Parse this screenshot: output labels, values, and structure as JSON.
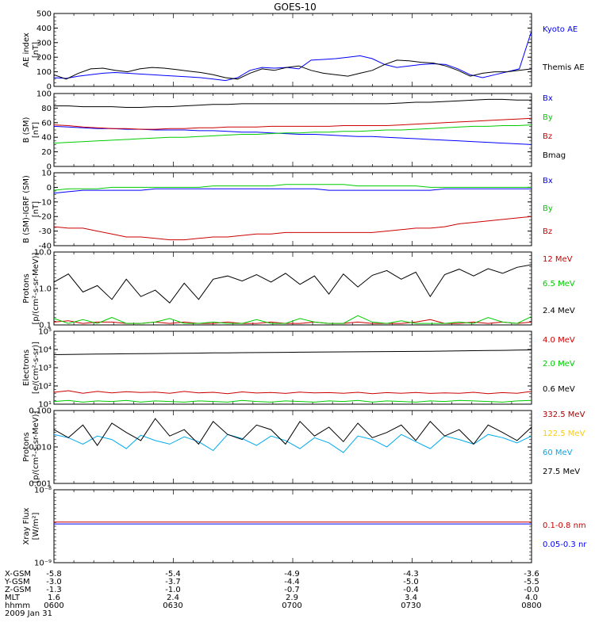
{
  "title": "GOES-10",
  "colors": {
    "blue": "#0000ff",
    "black": "#000000",
    "green": "#00cc00",
    "red": "#cc0000",
    "yellow": "#ffcc00",
    "cyan": "#00aaee",
    "darkred": "#aa0000"
  },
  "chart_data": [
    {
      "type": "line",
      "ylabel": [
        "AE index",
        "[nT]"
      ],
      "ylim": [
        0,
        500
      ],
      "yticks": [
        "0",
        "100",
        "200",
        "300",
        "400",
        "500"
      ],
      "series": [
        {
          "name": "Kyoto AE",
          "color": "#0000ff",
          "values": [
            60,
            55,
            70,
            80,
            90,
            95,
            90,
            85,
            80,
            75,
            70,
            65,
            60,
            50,
            40,
            60,
            110,
            130,
            125,
            130,
            120,
            180,
            185,
            190,
            200,
            210,
            190,
            150,
            130,
            140,
            150,
            155,
            150,
            120,
            80,
            60,
            80,
            100,
            120,
            380
          ]
        },
        {
          "name": "Themis AE",
          "color": "#000000",
          "values": [
            80,
            50,
            90,
            120,
            125,
            110,
            100,
            120,
            130,
            125,
            115,
            105,
            95,
            80,
            60,
            50,
            90,
            120,
            110,
            130,
            140,
            110,
            90,
            80,
            70,
            90,
            110,
            150,
            180,
            175,
            165,
            160,
            140,
            110,
            70,
            90,
            100,
            100,
            110,
            120
          ]
        }
      ]
    },
    {
      "type": "line",
      "ylabel": [
        "B (SM)",
        "[nT]"
      ],
      "ylim": [
        0,
        100
      ],
      "yticks": [
        "0",
        "20",
        "40",
        "60",
        "80",
        "100"
      ],
      "series": [
        {
          "name": "Bx",
          "color": "#0000ff",
          "values": [
            55,
            54,
            53,
            52,
            52,
            51,
            51,
            50,
            50,
            50,
            49,
            49,
            48,
            47,
            47,
            46,
            45,
            44,
            44,
            43,
            42,
            41,
            41,
            40,
            39,
            38,
            37,
            36,
            35,
            34,
            33,
            32,
            31,
            30
          ]
        },
        {
          "name": "By",
          "color": "#00cc00",
          "values": [
            32,
            33,
            34,
            35,
            36,
            37,
            38,
            39,
            40,
            40,
            41,
            42,
            43,
            44,
            44,
            45,
            46,
            46,
            47,
            47,
            48,
            48,
            49,
            50,
            50,
            51,
            52,
            53,
            54,
            55,
            55,
            56,
            56,
            57
          ]
        },
        {
          "name": "Bz",
          "color": "#cc0000",
          "values": [
            57,
            56,
            54,
            53,
            52,
            52,
            51,
            51,
            52,
            52,
            53,
            53,
            54,
            54,
            54,
            55,
            55,
            55,
            55,
            55,
            56,
            56,
            56,
            56,
            57,
            58,
            59,
            60,
            61,
            62,
            63,
            64,
            65,
            66
          ]
        },
        {
          "name": "Bmag",
          "color": "#000000",
          "values": [
            83,
            83,
            82,
            82,
            82,
            81,
            81,
            82,
            82,
            83,
            84,
            85,
            85,
            86,
            86,
            86,
            86,
            86,
            86,
            86,
            86,
            86,
            86,
            86,
            87,
            88,
            88,
            89,
            90,
            91,
            92,
            92,
            91,
            91
          ]
        }
      ]
    },
    {
      "type": "line",
      "ylabel": [
        "B (SM)-IGRF (SM)",
        "[nT]"
      ],
      "ylim": [
        -40,
        10
      ],
      "yticks": [
        "-40",
        "-30",
        "-20",
        "-10",
        "0",
        "10"
      ],
      "series": [
        {
          "name": "Bx",
          "color": "#0000ff",
          "values": [
            -4,
            -3,
            -2,
            -2,
            -2,
            -2,
            -2,
            -1,
            -1,
            -1,
            -1,
            -1,
            -1,
            -1,
            -1,
            -1,
            -1,
            -1,
            -1,
            -2,
            -2,
            -2,
            -2,
            -2,
            -2,
            -2,
            -2,
            -1,
            -1,
            -1,
            -1,
            -1,
            -1,
            -1
          ]
        },
        {
          "name": "By",
          "color": "#00cc00",
          "values": [
            -2,
            -1,
            -1,
            -1,
            0,
            0,
            0,
            0,
            0,
            0,
            0,
            1,
            1,
            1,
            1,
            1,
            2,
            2,
            2,
            2,
            2,
            1,
            1,
            1,
            1,
            1,
            0,
            0,
            0,
            0,
            0,
            0,
            0,
            0
          ]
        },
        {
          "name": "Bz",
          "color": "#cc0000",
          "values": [
            -27,
            -28,
            -28,
            -30,
            -32,
            -34,
            -34,
            -35,
            -36,
            -36,
            -35,
            -34,
            -34,
            -33,
            -32,
            -32,
            -31,
            -31,
            -31,
            -31,
            -31,
            -31,
            -31,
            -30,
            -29,
            -28,
            -28,
            -27,
            -25,
            -24,
            -23,
            -22,
            -21,
            -20
          ]
        }
      ]
    },
    {
      "type": "line",
      "scale": "log",
      "ylabel": [
        "Protons",
        "[p/(cm²-s-sr-MeV)]"
      ],
      "ylim": [
        0.1,
        10
      ],
      "yticks": [
        "0.1",
        "1.0",
        "10.0"
      ],
      "series": [
        {
          "name": "12 MeV",
          "color": "#cc0000",
          "values": [
            0.12,
            0.13,
            0.11,
            0.12,
            0.12,
            0.11,
            0.11,
            0.12,
            0.11,
            0.12,
            0.11,
            0.11,
            0.12,
            0.11,
            0.11,
            0.12,
            0.11,
            0.11,
            0.12,
            0.11,
            0.11,
            0.12,
            0.11,
            0.11,
            0.11,
            0.12,
            0.14,
            0.11,
            0.11,
            0.12,
            0.11,
            0.12,
            0.11,
            0.12
          ]
        },
        {
          "name": "6.5 MeV",
          "color": "#00cc00",
          "values": [
            0.15,
            0.11,
            0.14,
            0.11,
            0.16,
            0.11,
            0.11,
            0.12,
            0.15,
            0.11,
            0.11,
            0.12,
            0.11,
            0.11,
            0.14,
            0.11,
            0.11,
            0.15,
            0.12,
            0.11,
            0.11,
            0.18,
            0.12,
            0.11,
            0.13,
            0.11,
            0.11,
            0.11,
            0.12,
            0.11,
            0.16,
            0.12,
            0.11,
            0.17
          ]
        },
        {
          "name": "2.4 MeV",
          "color": "#000000",
          "values": [
            1.5,
            2.5,
            0.8,
            1.2,
            0.5,
            1.8,
            0.6,
            0.9,
            0.4,
            1.4,
            0.5,
            1.8,
            2.2,
            1.6,
            2.4,
            1.5,
            2.6,
            1.3,
            2.2,
            0.7,
            2.5,
            1.1,
            2.3,
            3.1,
            1.8,
            2.8,
            0.6,
            2.4,
            3.4,
            2.2,
            3.5,
            2.6,
            3.8,
            4.5
          ]
        }
      ]
    },
    {
      "type": "line",
      "scale": "log",
      "ylabel": [
        "Electrons",
        "[e/(cm²-s-sr)]"
      ],
      "ylim": [
        10,
        100000
      ],
      "yticks": [
        "10¹",
        "10²",
        "10³",
        "10⁴",
        "10⁵"
      ],
      "series": [
        {
          "name": "4.0 MeV",
          "color": "#cc0000",
          "values": [
            45,
            55,
            40,
            50,
            42,
            48,
            44,
            46,
            40,
            50,
            42,
            45,
            38,
            47,
            41,
            44,
            39,
            46,
            42,
            43,
            40,
            45,
            38,
            43,
            40,
            44,
            39,
            42,
            40,
            45,
            38,
            43,
            40,
            50
          ]
        },
        {
          "name": "2.0 MeV",
          "color": "#00cc00",
          "values": [
            14,
            16,
            13,
            15,
            14,
            16,
            13,
            15,
            14,
            13,
            15,
            14,
            13,
            16,
            14,
            13,
            15,
            14,
            13,
            15,
            14,
            16,
            13,
            15,
            14,
            13,
            15,
            14,
            16,
            15,
            14,
            13,
            15,
            16
          ]
        },
        {
          "name": "0.6 MeV",
          "color": "#000000",
          "values": [
            5200,
            5400,
            5500,
            5600,
            5700,
            5800,
            5900,
            6000,
            6100,
            6200,
            6300,
            6500,
            6600,
            6700,
            6800,
            6900,
            7000,
            7100,
            7200,
            7300,
            7400,
            7500,
            7600,
            7700,
            7800,
            7900,
            8000,
            8200,
            8400,
            8600,
            8800,
            9000,
            9200,
            9500
          ]
        }
      ]
    },
    {
      "type": "line",
      "scale": "log",
      "ylabel": [
        "Protons",
        "[p/(cm²-s-sr-MeV)]"
      ],
      "ylim": [
        0.001,
        0.1
      ],
      "yticks": [
        "0.001",
        "0.010",
        "0.100"
      ],
      "series": [
        {
          "name": "332.5 MeV",
          "color": "#aa0000",
          "values": []
        },
        {
          "name": "122.5 MeV",
          "color": "#ffcc00",
          "values": []
        },
        {
          "name": "60 MeV",
          "color": "#00aaee",
          "values": [
            0.022,
            0.018,
            0.012,
            0.02,
            0.016,
            0.009,
            0.021,
            0.015,
            0.012,
            0.019,
            0.014,
            0.008,
            0.022,
            0.017,
            0.011,
            0.02,
            0.015,
            0.009,
            0.018,
            0.013,
            0.007,
            0.02,
            0.016,
            0.01,
            0.022,
            0.014,
            0.009,
            0.02,
            0.016,
            0.012,
            0.022,
            0.018,
            0.013,
            0.02
          ]
        },
        {
          "name": "27.5 MeV",
          "color": "#000000",
          "values": [
            0.03,
            0.018,
            0.04,
            0.011,
            0.045,
            0.025,
            0.015,
            0.06,
            0.02,
            0.03,
            0.012,
            0.05,
            0.022,
            0.016,
            0.04,
            0.03,
            0.012,
            0.05,
            0.02,
            0.035,
            0.014,
            0.045,
            0.018,
            0.025,
            0.04,
            0.015,
            0.05,
            0.02,
            0.03,
            0.012,
            0.04,
            0.025,
            0.015,
            0.035
          ]
        }
      ]
    },
    {
      "type": "line",
      "scale": "log",
      "ylabel": [
        "Xray  Flux",
        "[W/m²]"
      ],
      "ylim": [
        1e-09,
        1e-08
      ],
      "yticks": [
        "10⁻⁹",
        "10⁻⁸"
      ],
      "series": [
        {
          "name": "0.1-0.8 nm",
          "color": "#cc0000",
          "values": [
            3.6e-09,
            3.6e-09,
            3.6e-09,
            3.6e-09,
            3.6e-09,
            3.6e-09,
            3.6e-09,
            3.6e-09,
            3.6e-09,
            3.6e-09,
            3.6e-09,
            3.6e-09,
            3.6e-09,
            3.6e-09,
            3.6e-09,
            3.6e-09,
            3.6e-09,
            3.6e-09,
            3.6e-09,
            3.6e-09,
            3.6e-09,
            3.6e-09,
            3.6e-09,
            3.6e-09,
            3.6e-09,
            3.6e-09,
            3.6e-09,
            3.6e-09,
            3.6e-09,
            3.6e-09,
            3.6e-09,
            3.6e-09,
            3.6e-09,
            3.6e-09
          ]
        },
        {
          "name": "0.05-0.3 nr",
          "color": "#0000ff",
          "values": [
            3.4e-09,
            3.4e-09,
            3.4e-09,
            3.4e-09,
            3.4e-09,
            3.4e-09,
            3.4e-09,
            3.4e-09,
            3.4e-09,
            3.4e-09,
            3.4e-09,
            3.4e-09,
            3.4e-09,
            3.4e-09,
            3.4e-09,
            3.4e-09,
            3.4e-09,
            3.4e-09,
            3.4e-09,
            3.4e-09,
            3.4e-09,
            3.4e-09,
            3.4e-09,
            3.4e-09,
            3.4e-09,
            3.4e-09,
            3.4e-09,
            3.4e-09,
            3.4e-09,
            3.4e-09,
            3.4e-09,
            3.4e-09,
            3.4e-09,
            3.4e-09
          ]
        }
      ]
    }
  ],
  "footer": {
    "rows": [
      {
        "label": "X-GSM",
        "values": [
          "-5.8",
          "-5.4",
          "-4.9",
          "-4.3",
          "-3.6"
        ]
      },
      {
        "label": "Y-GSM",
        "values": [
          "-3.0",
          "-3.7",
          "-4.4",
          "-5.0",
          "-5.5"
        ]
      },
      {
        "label": "Z-GSM",
        "values": [
          "-1.3",
          "-1.0",
          "-0.7",
          "-0.4",
          "-0.0"
        ]
      },
      {
        "label": "MLT",
        "values": [
          "1.6",
          "2.4",
          "2.9",
          "3.4",
          "4.0"
        ]
      },
      {
        "label": "hhmm",
        "values": [
          "0600",
          "0630",
          "0700",
          "0730",
          "0800"
        ]
      }
    ],
    "date": "2009 Jan 31"
  }
}
